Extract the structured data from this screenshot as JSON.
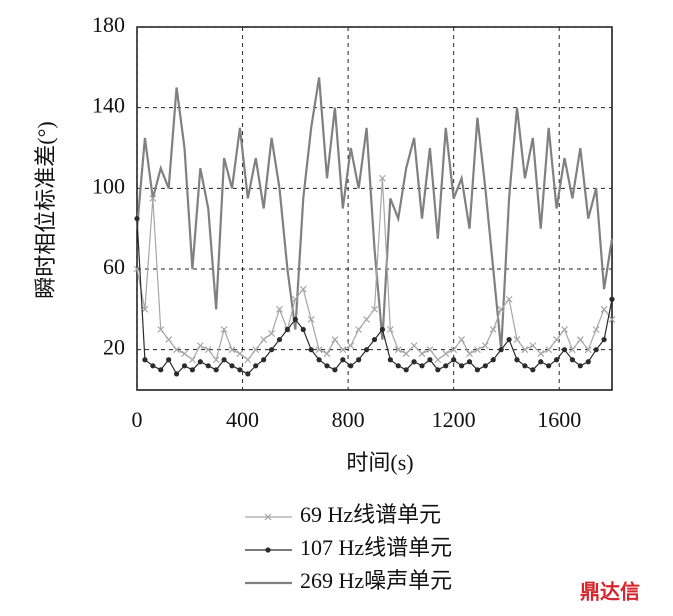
{
  "chart_data": {
    "type": "line",
    "x_label": "时间(s)",
    "y_label": "瞬时相位标准差(°)",
    "x": [
      0,
      30,
      60,
      90,
      120,
      150,
      180,
      210,
      240,
      270,
      300,
      330,
      360,
      390,
      420,
      450,
      480,
      510,
      540,
      570,
      600,
      630,
      660,
      690,
      720,
      750,
      780,
      810,
      840,
      870,
      900,
      930,
      960,
      990,
      1020,
      1050,
      1080,
      1110,
      1140,
      1170,
      1200,
      1230,
      1260,
      1290,
      1320,
      1350,
      1380,
      1410,
      1440,
      1470,
      1500,
      1530,
      1560,
      1590,
      1620,
      1650,
      1680,
      1710,
      1740,
      1770,
      1800
    ],
    "xlim": [
      0,
      1800
    ],
    "xticks": [
      0,
      400,
      800,
      1200,
      1600
    ],
    "ylim": [
      0,
      180
    ],
    "yticks": [
      20,
      60,
      100,
      140,
      180
    ],
    "grid": true,
    "series": [
      {
        "name": "69 Hz线谱单元",
        "color": "#a6a6a6",
        "marker": "x",
        "values": [
          60,
          40,
          95,
          30,
          25,
          20,
          18,
          15,
          22,
          20,
          15,
          30,
          20,
          18,
          15,
          20,
          25,
          28,
          40,
          30,
          45,
          50,
          35,
          20,
          18,
          25,
          20,
          22,
          30,
          35,
          40,
          105,
          30,
          20,
          18,
          22,
          18,
          20,
          15,
          18,
          20,
          25,
          18,
          20,
          22,
          30,
          40,
          45,
          25,
          20,
          22,
          18,
          20,
          25,
          30,
          20,
          25,
          20,
          30,
          40,
          35
        ]
      },
      {
        "name": "107 Hz线谱单元",
        "color": "#2b2b2b",
        "marker": "dot",
        "values": [
          85,
          15,
          12,
          10,
          15,
          8,
          12,
          10,
          14,
          12,
          10,
          15,
          12,
          10,
          8,
          12,
          15,
          20,
          25,
          30,
          35,
          30,
          20,
          15,
          12,
          10,
          15,
          12,
          15,
          20,
          25,
          30,
          15,
          12,
          10,
          14,
          12,
          15,
          10,
          12,
          15,
          12,
          14,
          10,
          12,
          15,
          20,
          25,
          15,
          12,
          10,
          14,
          12,
          15,
          20,
          15,
          12,
          14,
          20,
          25,
          45
        ]
      },
      {
        "name": "269 Hz噪声单元",
        "color": "#808080",
        "marker": "none",
        "values": [
          80,
          125,
          95,
          110,
          100,
          150,
          120,
          60,
          110,
          90,
          40,
          115,
          100,
          130,
          95,
          115,
          90,
          125,
          100,
          60,
          30,
          95,
          130,
          155,
          105,
          140,
          90,
          120,
          100,
          130,
          70,
          25,
          95,
          85,
          110,
          125,
          85,
          120,
          75,
          130,
          95,
          105,
          80,
          135,
          100,
          60,
          20,
          95,
          140,
          105,
          125,
          80,
          130,
          90,
          115,
          95,
          120,
          85,
          100,
          50,
          75
        ]
      }
    ],
    "watermark": "鼎达信"
  }
}
